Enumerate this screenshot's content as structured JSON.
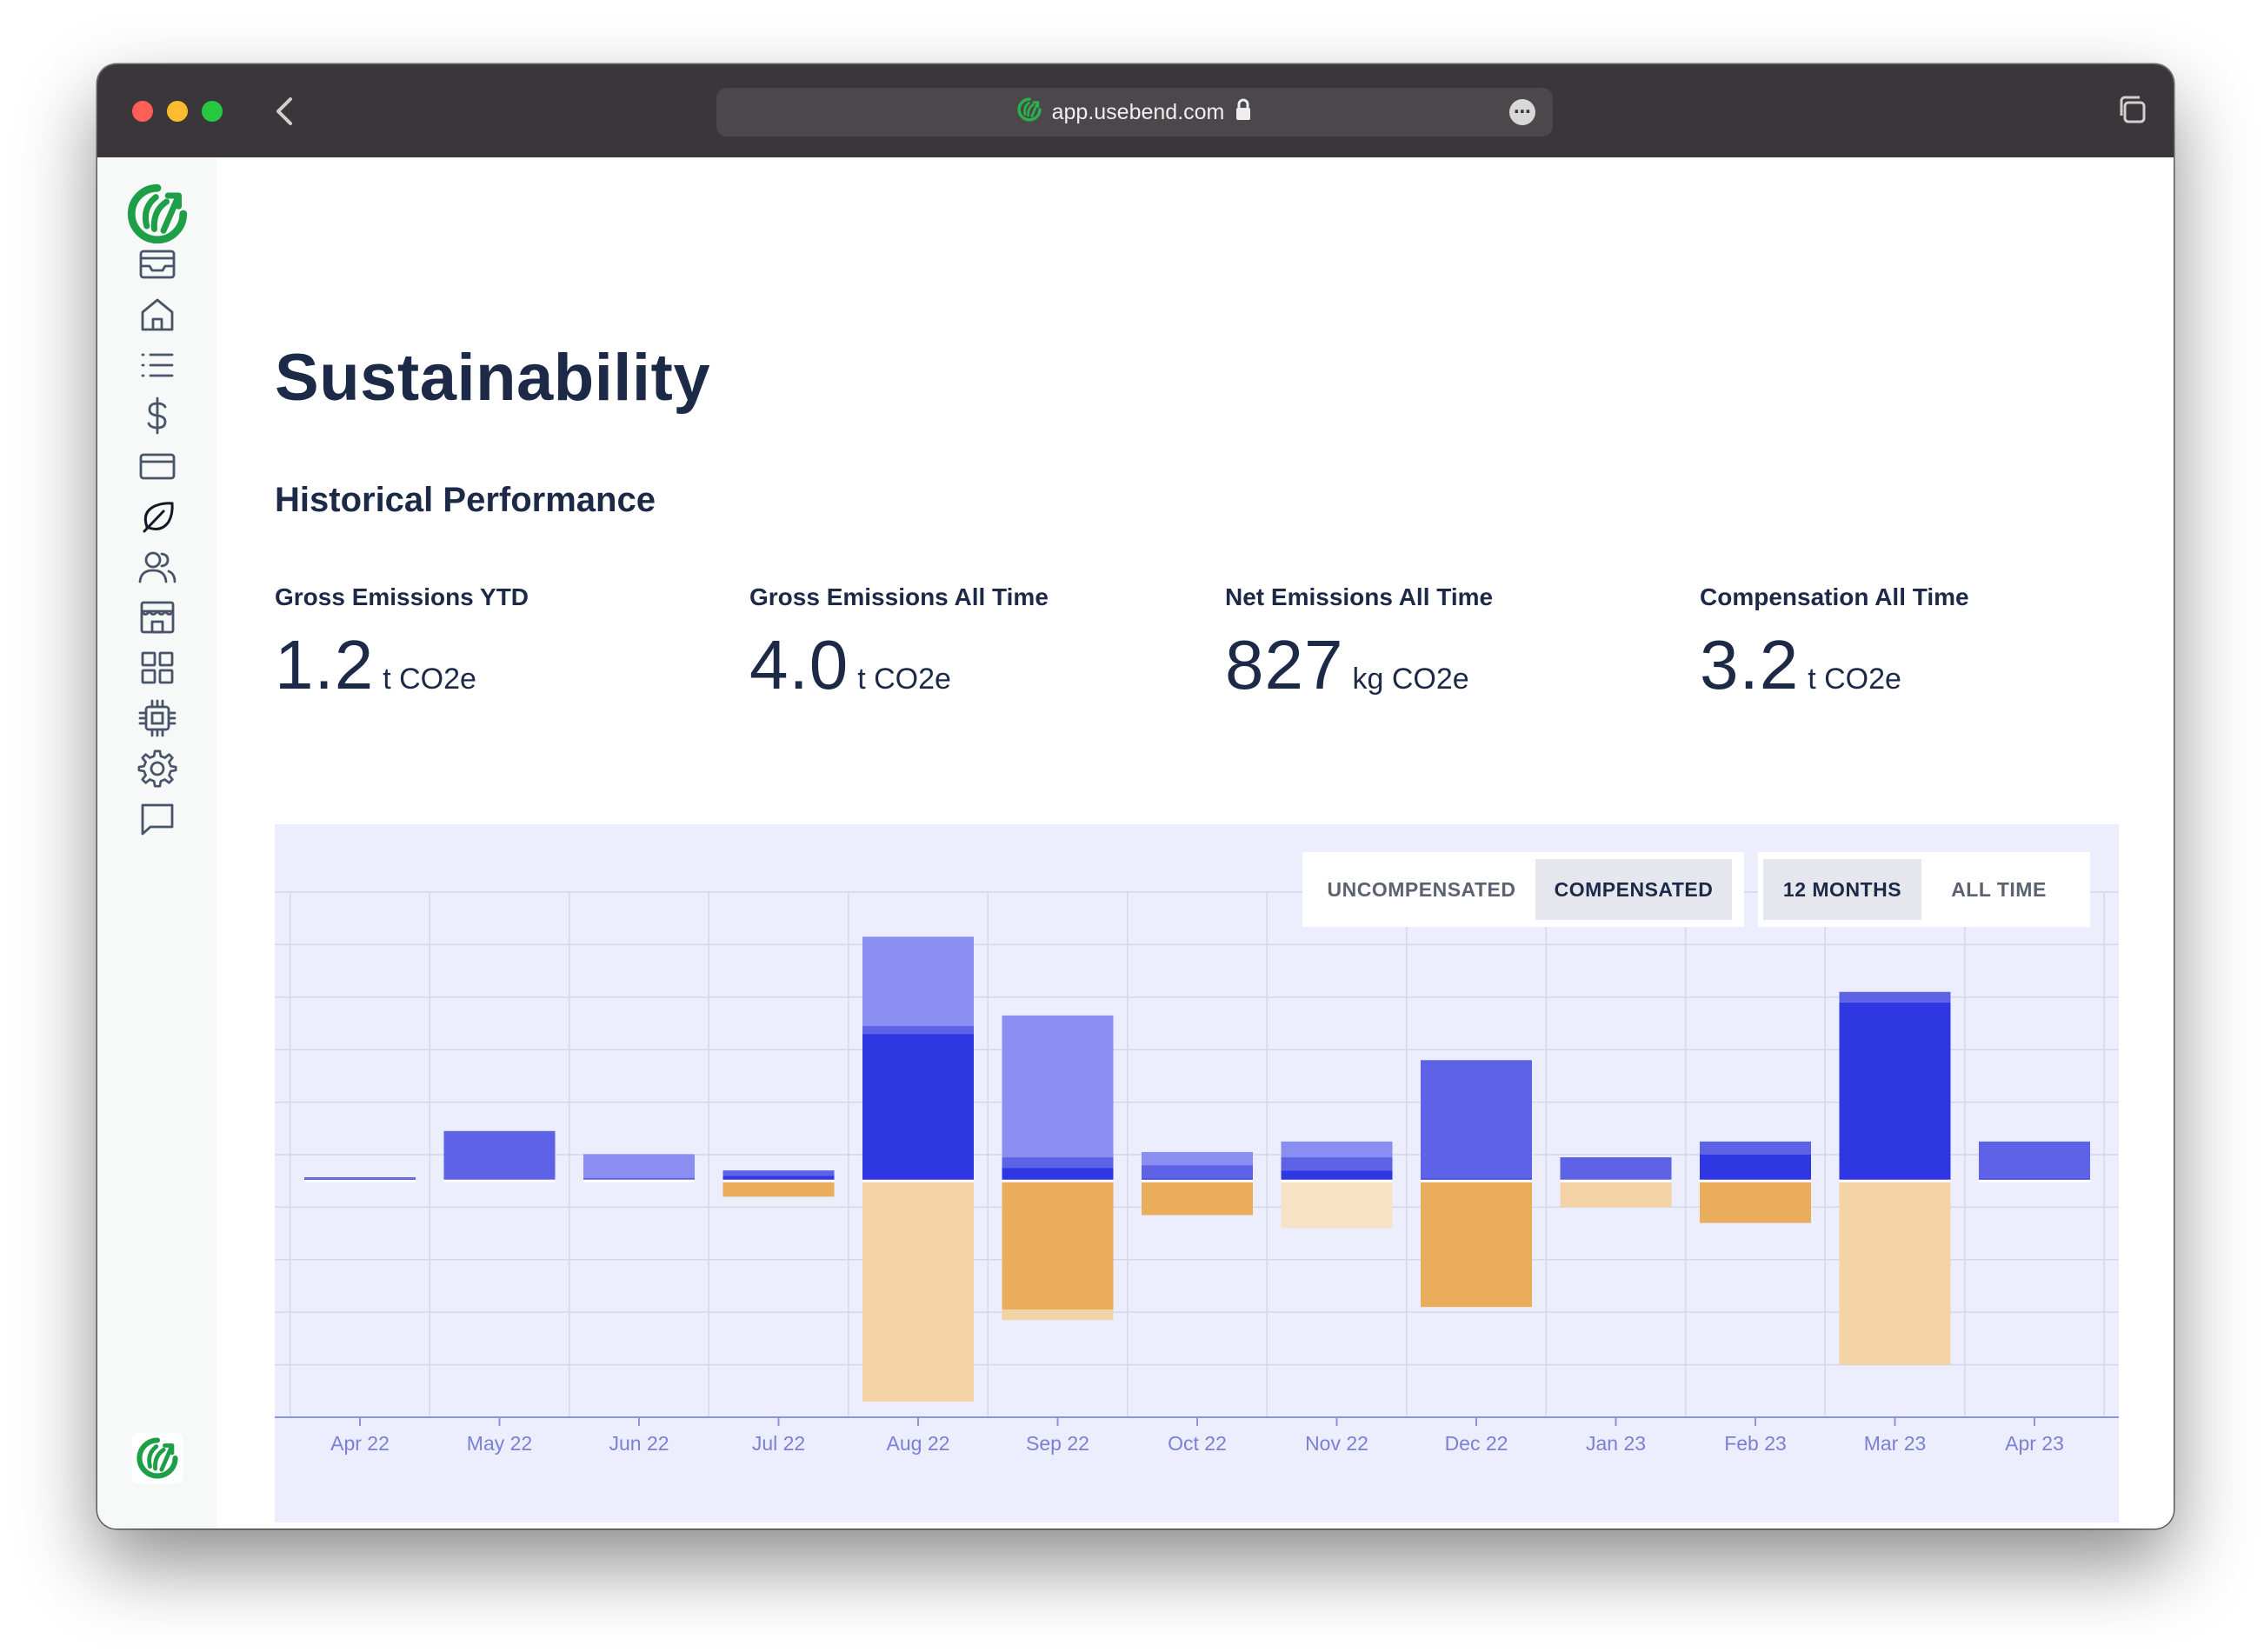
{
  "browser": {
    "url": "app.usebend.com"
  },
  "page": {
    "title": "Sustainability",
    "section_title": "Historical Performance"
  },
  "stats": [
    {
      "label": "Gross Emissions YTD",
      "value": "1.2",
      "unit": "t CO2e"
    },
    {
      "label": "Gross Emissions All Time",
      "value": "4.0",
      "unit": "t CO2e"
    },
    {
      "label": "Net Emissions All Time",
      "value": "827",
      "unit": "kg CO2e"
    },
    {
      "label": "Compensation All Time",
      "value": "3.2",
      "unit": "t CO2e"
    }
  ],
  "toggles": {
    "mode": {
      "uncompensated": "UNCOMPENSATED",
      "compensated": "COMPENSATED",
      "selected": "COMPENSATED"
    },
    "range": {
      "months12": "12 MONTHS",
      "all_time": "ALL TIME",
      "selected": "12 MONTHS"
    }
  },
  "sidebar": {
    "icons": [
      "inbox-icon",
      "home-icon",
      "list-icon",
      "dollar-icon",
      "card-icon",
      "leaf-icon",
      "users-icon",
      "store-icon",
      "grid-icon",
      "chip-icon",
      "gear-icon",
      "chat-icon"
    ],
    "active": "leaf-icon"
  },
  "colors": {
    "background": "#ecedfd",
    "grid": "#d5d7ea",
    "axis": "#8f94da",
    "dark_blue": "#2f37e3",
    "mid_blue": "#5d62e6",
    "light_blue": "#8a8ef0",
    "dark_orange": "#e9ad5b",
    "light_orange": "#f3d3a5",
    "pale_orange": "#f7e2c5",
    "brand_green": "#1f9e48"
  },
  "chart_data": {
    "type": "bar",
    "stacked": true,
    "categories": [
      "Apr 22",
      "May 22",
      "Jun 22",
      "Jul 22",
      "Aug 22",
      "Sep 22",
      "Oct 22",
      "Nov 22",
      "Dec 22",
      "Jan 23",
      "Feb 23",
      "Mar 23",
      "Apr 23"
    ],
    "title": "",
    "xlabel": "",
    "ylabel": "",
    "ylim": [
      -0.45,
      0.55
    ],
    "grid": true,
    "legend": "none",
    "series": [
      {
        "color": "#2f37e3",
        "values": [
          0.004,
          0,
          0.001,
          0.01,
          0.28,
          0.025,
          0.005,
          0.02,
          0.005,
          0,
          0.05,
          0.34,
          0.005
        ]
      },
      {
        "color": "#5d62e6",
        "values": [
          0.003,
          0.095,
          0.005,
          0.01,
          0.015,
          0.02,
          0.025,
          0.025,
          0.225,
          0.045,
          0.025,
          0.02,
          0.07
        ]
      },
      {
        "color": "#8a8ef0",
        "values": [
          0,
          0,
          0.045,
          0,
          0.17,
          0.27,
          0.025,
          0.03,
          0,
          0,
          0,
          0,
          0
        ]
      },
      {
        "color": "#e9ad5b",
        "values": [
          0,
          0,
          0,
          -0.03,
          0,
          -0.245,
          -0.065,
          0,
          -0.24,
          0,
          -0.08,
          0,
          0
        ]
      },
      {
        "color": "#f3d3a5",
        "values": [
          0,
          0,
          0,
          0,
          -0.42,
          -0.02,
          0,
          0,
          0,
          -0.05,
          0,
          -0.35,
          0
        ]
      },
      {
        "color": "#f7e2c5",
        "values": [
          0,
          0,
          0,
          0,
          0,
          0,
          0,
          -0.09,
          0,
          0,
          0,
          0,
          0
        ]
      }
    ]
  }
}
